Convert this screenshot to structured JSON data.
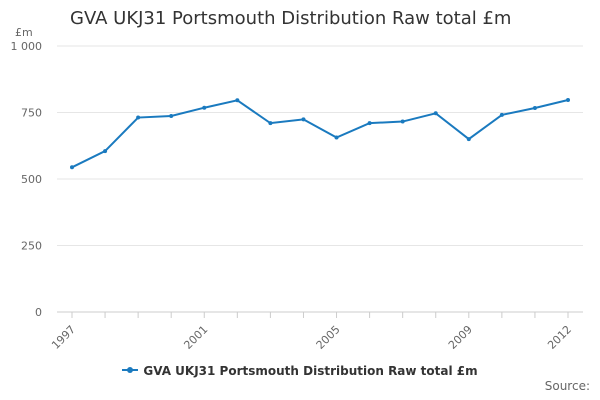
{
  "chart_data": {
    "type": "line",
    "title": "GVA UKJ31 Portsmouth Distribution Raw total £m",
    "unit_label": "£m",
    "x": [
      "1997",
      "1998",
      "1999",
      "2000",
      "2001",
      "2002",
      "2003",
      "2004",
      "2005",
      "2006",
      "2007",
      "2008",
      "2009",
      "2010",
      "2011",
      "2012"
    ],
    "x_tick_labels": [
      "1997",
      "2001",
      "2005",
      "2009",
      "2012"
    ],
    "y_ticks": [
      "0",
      "250",
      "500",
      "750",
      "1 000"
    ],
    "ylim": [
      0,
      1000
    ],
    "grid": true,
    "legend_position": "bottom",
    "series": [
      {
        "name": "GVA UKJ31 Portsmouth Distribution Raw total £m",
        "color": "#1a7abf",
        "values": [
          544,
          605,
          731,
          737,
          768,
          796,
          710,
          724,
          656,
          710,
          716,
          747,
          650,
          741,
          767,
          797
        ]
      }
    ],
    "source_label": "Source:"
  }
}
